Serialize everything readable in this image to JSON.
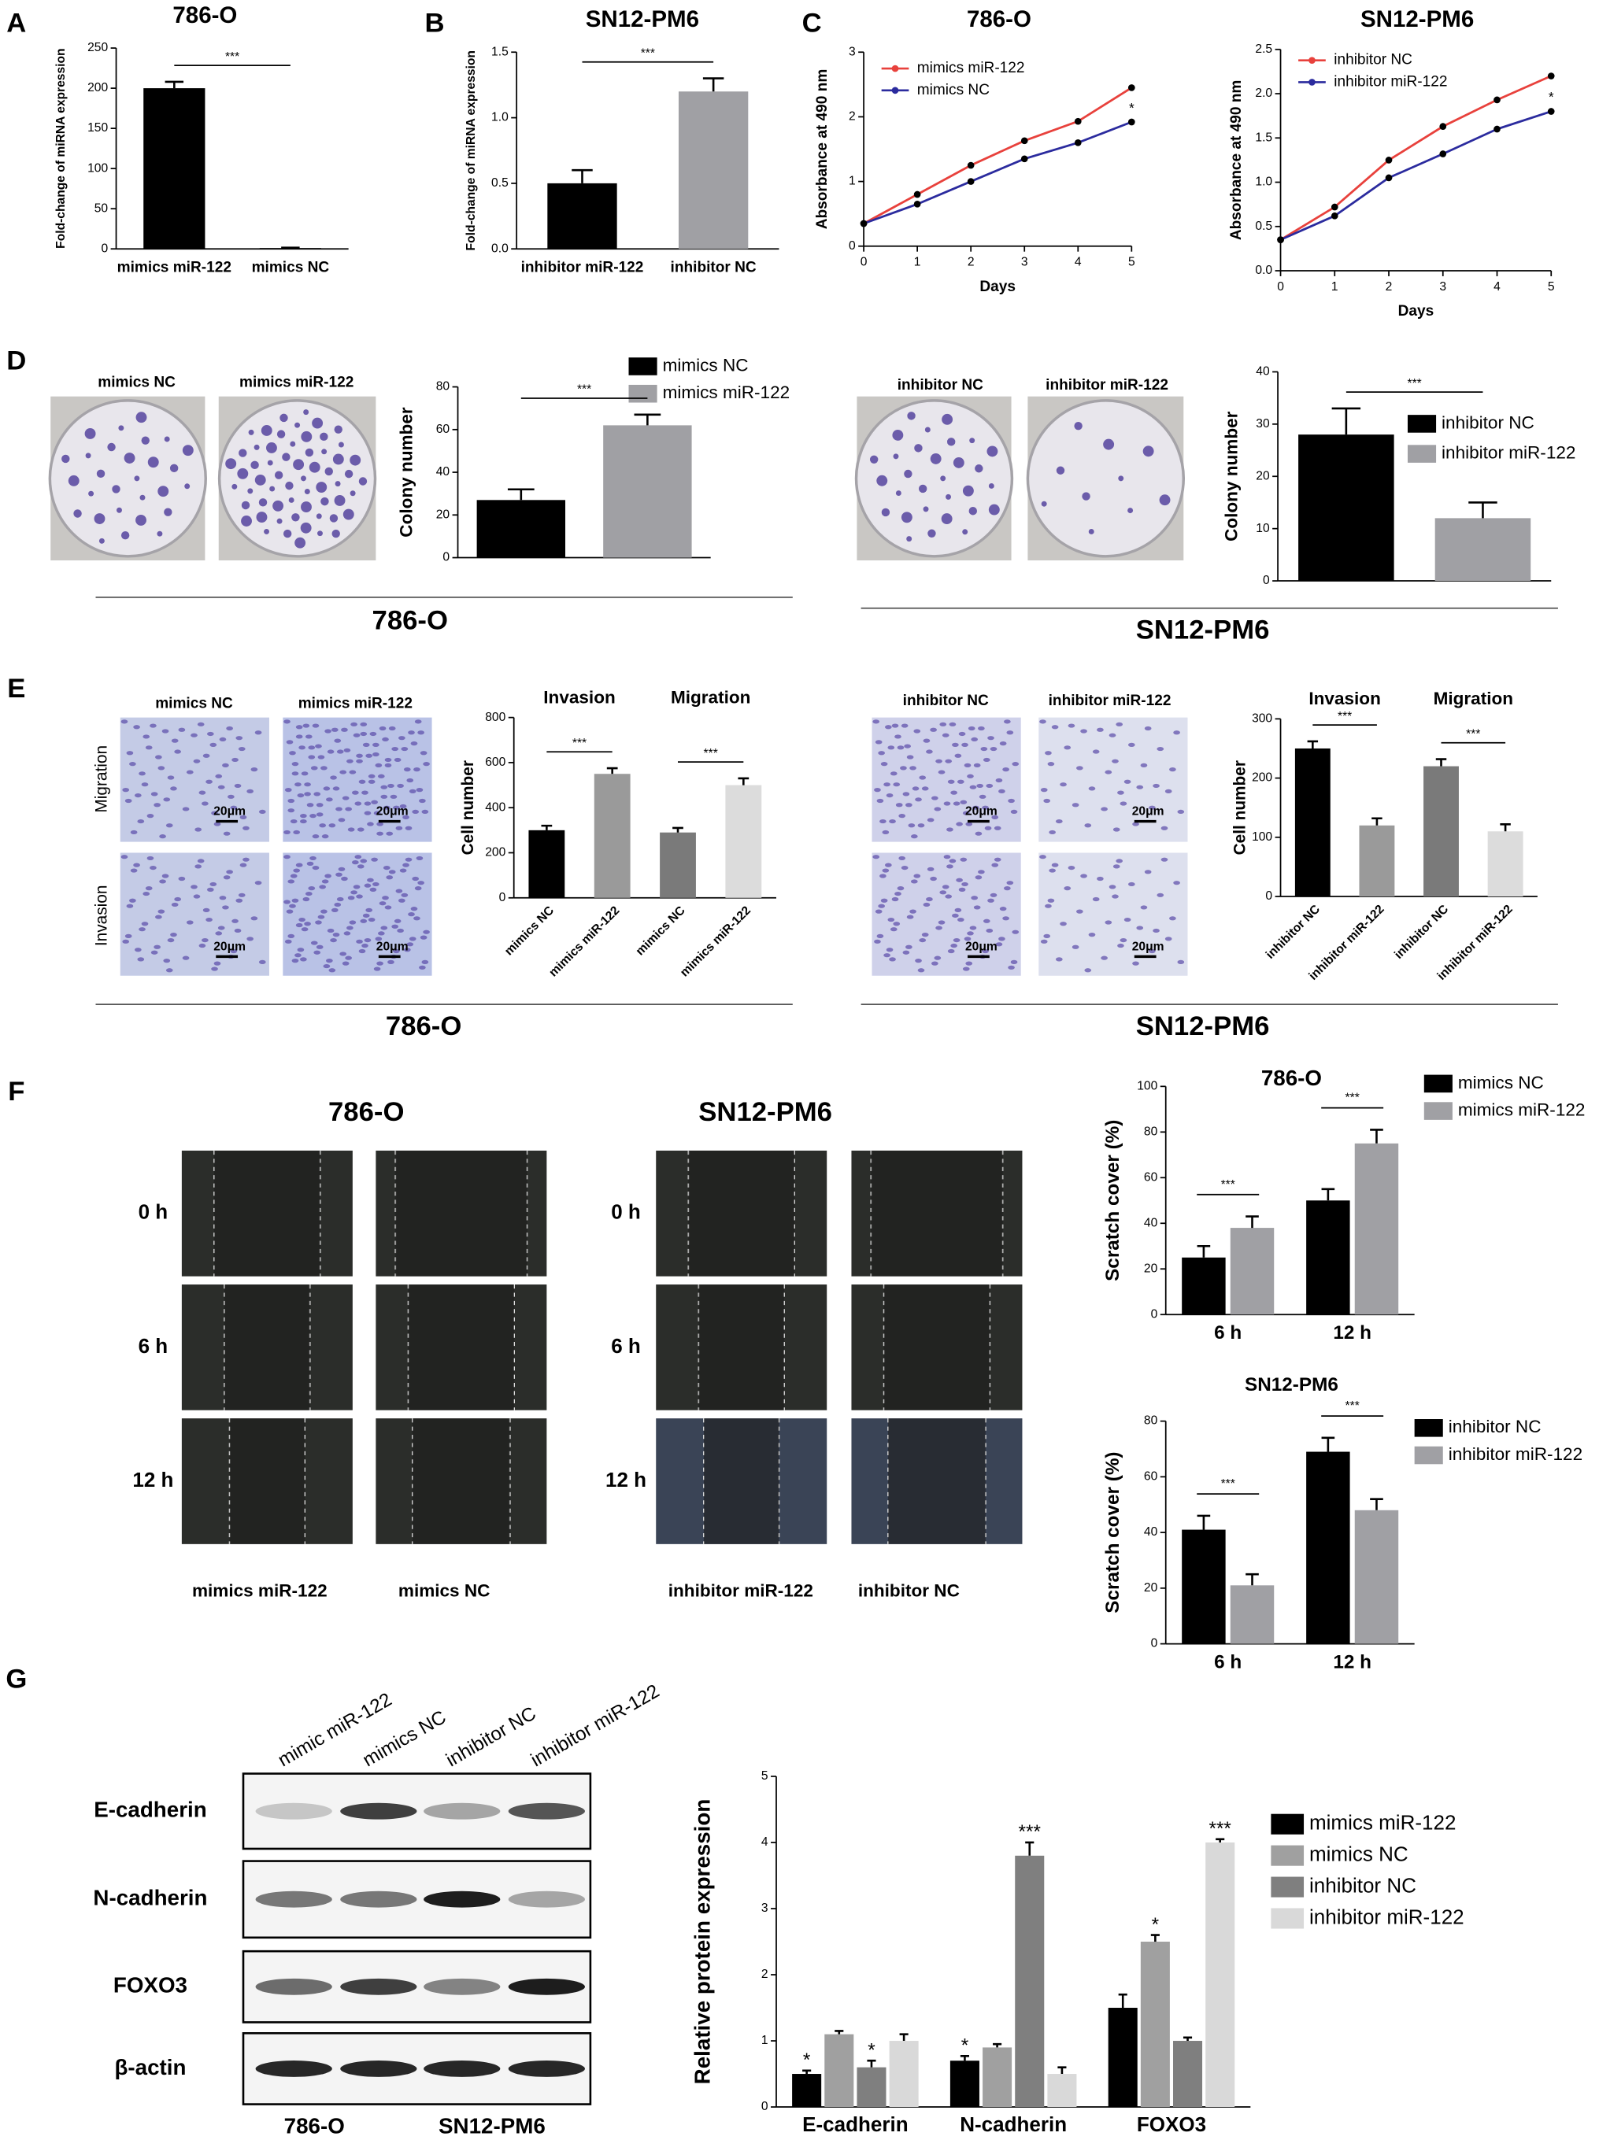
{
  "chart_data": [
    {
      "type": "bar",
      "title": "786-O",
      "y_label": "Fold-change of miRNA expression",
      "categories": [
        "mimics miR-122",
        "mimics NC"
      ],
      "values": [
        200,
        1
      ],
      "errors": [
        8,
        0.5
      ],
      "colors": [
        "#000000",
        "#000000"
      ],
      "ylim": [
        0,
        250
      ],
      "yticks": [
        0,
        50,
        100,
        150,
        200,
        250
      ],
      "annotations": [
        {
          "text": "***",
          "from": 0,
          "to": 1
        }
      ]
    },
    {
      "type": "bar",
      "title": "SN12-PM6",
      "y_label": "Fold-change of miRNA expression",
      "categories": [
        "inhibitor  miR-122",
        "inhibitor  NC"
      ],
      "values": [
        0.5,
        1.2
      ],
      "errors": [
        0.1,
        0.1
      ],
      "colors": [
        "#000000",
        "#a0a0a4"
      ],
      "ylim": [
        0,
        1.5
      ],
      "yticks": [
        {
          "value": 0,
          "label": "0.0"
        },
        0.5,
        {
          "value": 1,
          "label": "1.0"
        },
        1.5
      ],
      "annotations": [
        {
          "text": "***",
          "from": 0,
          "to": 1
        }
      ]
    },
    {
      "type": "line",
      "title": "786-O",
      "x_label": "Days",
      "y_label": "Absorbance at 490 nm",
      "x": [
        0,
        1,
        2,
        3,
        4,
        5
      ],
      "xlim": [
        0,
        5
      ],
      "xticks": [
        0,
        1,
        2,
        3,
        4,
        5
      ],
      "ylim": [
        0,
        3
      ],
      "yticks": [
        0,
        1,
        2,
        3
      ],
      "series": [
        {
          "name": "mimics miR-122",
          "color": "#e8413c",
          "values": [
            0.35,
            0.8,
            1.25,
            1.63,
            1.93,
            2.45
          ]
        },
        {
          "name": "mimics NC",
          "color": "#2b2b9e",
          "values": [
            0.35,
            0.65,
            1.0,
            1.35,
            1.6,
            1.92
          ]
        }
      ],
      "annotations": [
        {
          "text": "*",
          "x": 5
        }
      ]
    },
    {
      "type": "line",
      "title": "SN12-PM6",
      "x_label": "Days",
      "y_label": "Absorbance at 490 nm",
      "x": [
        0,
        1,
        2,
        3,
        4,
        5
      ],
      "xlim": [
        0,
        5
      ],
      "xticks": [
        0,
        1,
        2,
        3,
        4,
        5
      ],
      "ylim": [
        0,
        2.5
      ],
      "yticks": [
        {
          "value": 0,
          "label": "0.0"
        },
        0.5,
        {
          "value": 1,
          "label": "1.0"
        },
        1.5,
        {
          "value": 2,
          "label": "2.0"
        },
        2.5
      ],
      "series": [
        {
          "name": "inhibitor NC",
          "color": "#e8413c",
          "values": [
            0.35,
            0.72,
            1.25,
            1.63,
            1.93,
            2.2
          ]
        },
        {
          "name": "inhibitor miR-122",
          "color": "#2b2b9e",
          "values": [
            0.35,
            0.62,
            1.05,
            1.32,
            1.6,
            1.8
          ]
        }
      ],
      "annotations": [
        {
          "text": "*",
          "x": 5
        }
      ]
    },
    {
      "type": "bar",
      "y_label": "Colony number",
      "ylim": [
        0,
        80
      ],
      "yticks": [
        0,
        20,
        40,
        60,
        80
      ],
      "series": [
        {
          "name": "mimics NC",
          "color": "#000000",
          "values": [
            27
          ],
          "errors": [
            5
          ]
        },
        {
          "name": "mimics  miR-122",
          "color": "#a0a0a4",
          "values": [
            62
          ],
          "errors": [
            5
          ]
        }
      ],
      "annotations": [
        {
          "text": "***",
          "from": 0,
          "to": 1
        }
      ]
    },
    {
      "type": "bar",
      "y_label": "Colony number",
      "ylim": [
        0,
        40
      ],
      "yticks": [
        0,
        10,
        20,
        30,
        40
      ],
      "series": [
        {
          "name": "inhibitor NC",
          "color": "#000000",
          "values": [
            28
          ],
          "errors": [
            5
          ]
        },
        {
          "name": "inhibitor miR-122",
          "color": "#a0a0a4",
          "values": [
            12
          ],
          "errors": [
            3
          ]
        }
      ],
      "annotations": [
        {
          "text": "***",
          "from": 0,
          "to": 1
        }
      ]
    },
    {
      "type": "bar",
      "y_label": "Cell number",
      "categories": [
        "mimics  NC",
        "mimics  miR-122",
        "mimics  NC",
        "mimics  miR-122"
      ],
      "values": [
        300,
        550,
        290,
        500
      ],
      "errors": [
        20,
        25,
        20,
        30
      ],
      "colors": [
        "#000000",
        "#9a9a9a",
        "#7a7a7a",
        "#dcdcdc"
      ],
      "ylim": [
        0,
        800
      ],
      "yticks": [
        0,
        200,
        400,
        600,
        800
      ],
      "annotations": [
        {
          "text": "***",
          "from": 0,
          "to": 1,
          "group": "Invasion"
        },
        {
          "text": "***",
          "from": 2,
          "to": 3,
          "group": "Migration"
        }
      ]
    },
    {
      "type": "bar",
      "y_label": "Cell number",
      "categories": [
        "inhibitor  NC",
        "inhibitor  miR-122",
        "inhibitor  NC",
        "inhibitor  miR-122"
      ],
      "values": [
        250,
        120,
        220,
        110
      ],
      "errors": [
        12,
        12,
        12,
        12
      ],
      "colors": [
        "#000000",
        "#9a9a9a",
        "#7a7a7a",
        "#dcdcdc"
      ],
      "ylim": [
        0,
        300
      ],
      "yticks": [
        0,
        100,
        200,
        300
      ],
      "annotations": [
        {
          "text": "***",
          "from": 0,
          "to": 1,
          "group": "Invasion"
        },
        {
          "text": "***",
          "from": 2,
          "to": 3,
          "group": "Migration"
        }
      ]
    },
    {
      "type": "bar",
      "title": "786-O",
      "y_label": "Scratch cover (%)",
      "categories": [
        "6 h",
        "12 h"
      ],
      "series": [
        {
          "name": "mimics NC",
          "color": "#000000",
          "values": [
            25,
            50
          ],
          "errors": [
            5,
            5
          ]
        },
        {
          "name": "mimics  miR-122",
          "color": "#a0a0a4",
          "values": [
            38,
            75
          ],
          "errors": [
            5,
            6
          ]
        }
      ],
      "ylim": [
        0,
        100
      ],
      "yticks": [
        0,
        20,
        40,
        60,
        80,
        100
      ],
      "annotations": [
        {
          "text": "***",
          "category": 0
        },
        {
          "text": "***",
          "category": 1
        }
      ]
    },
    {
      "type": "bar",
      "title": "SN12-PM6",
      "y_label": "Scratch cover (%)",
      "categories": [
        "6 h",
        "12 h"
      ],
      "series": [
        {
          "name": "inhibitor NC",
          "color": "#000000",
          "values": [
            41,
            69
          ],
          "errors": [
            5,
            5
          ]
        },
        {
          "name": "inhibitor miR-122",
          "color": "#a0a0a4",
          "values": [
            21,
            48
          ],
          "errors": [
            4,
            4
          ]
        }
      ],
      "ylim": [
        0,
        80
      ],
      "yticks": [
        0,
        20,
        40,
        60,
        80
      ],
      "annotations": [
        {
          "text": "***",
          "category": 0
        },
        {
          "text": "***",
          "category": 1
        }
      ]
    },
    {
      "type": "bar",
      "y_label": "Relative protein expression",
      "categories": [
        "E-cadherin",
        "N-cadherin",
        "FOXO3"
      ],
      "series": [
        {
          "name": "mimics  miR-122",
          "color": "#000000",
          "values": [
            0.5,
            0.7,
            1.5
          ],
          "errors": [
            0.05,
            0.07,
            0.2
          ]
        },
        {
          "name": "mimics NC",
          "color": "#a0a0a0",
          "values": [
            1.1,
            0.9,
            2.5
          ],
          "errors": [
            0.05,
            0.05,
            0.1
          ]
        },
        {
          "name": "inhibitor NC",
          "color": "#7f7f7f",
          "values": [
            0.6,
            3.8,
            1.0
          ],
          "errors": [
            0.1,
            0.2,
            0.05
          ]
        },
        {
          "name": "inhibitor miR-122",
          "color": "#d9d9d9",
          "values": [
            1.0,
            0.5,
            4.0
          ],
          "errors": [
            0.1,
            0.1,
            0.05
          ]
        }
      ],
      "ylim": [
        0,
        5
      ],
      "yticks": [
        0,
        1,
        2,
        3,
        4,
        5
      ],
      "annotations": [
        {
          "text": "*",
          "series": 0,
          "category": 0
        },
        {
          "text": "*",
          "series": 2,
          "category": 0
        },
        {
          "text": "*",
          "series": 0,
          "category": 1
        },
        {
          "text": "***",
          "series": 2,
          "category": 1
        },
        {
          "text": "*",
          "series": 1,
          "category": 2
        },
        {
          "text": "***",
          "series": 3,
          "category": 2
        }
      ]
    }
  ],
  "figure": {
    "panels": [
      "A",
      "B",
      "C",
      "D",
      "E",
      "F",
      "G"
    ],
    "d": {
      "photos_left": [
        "mimics NC",
        "mimics miR-122"
      ],
      "cell_left": "786-O",
      "photos_right": [
        "inhibitor  NC",
        "inhibitor  miR-122"
      ],
      "cell_right": "SN12-PM6"
    },
    "e": {
      "photos_left": [
        "mimics NC",
        "mimics miR-122"
      ],
      "photos_right": [
        "inhibitor  NC",
        "inhibitor  miR-122"
      ],
      "rows": [
        "Migration",
        "Invasion"
      ],
      "scale": "20μm",
      "cell_left": "786-O",
      "cell_right": "SN12-PM6"
    },
    "f": {
      "cells": [
        "786-O",
        "SN12-PM6"
      ],
      "times": [
        "0 h",
        "6 h",
        "12 h"
      ],
      "left_cols": [
        "mimics miR-122",
        "mimics NC"
      ],
      "right_cols": [
        "inhibitor miR-122",
        "inhibitor NC"
      ]
    },
    "g": {
      "lanes": [
        "mimic miR-122",
        "mimics NC",
        "inhibitor NC",
        "inhibitor miR-122"
      ],
      "proteins": [
        "E-cadherin",
        "N-cadherin",
        "FOXO3",
        "β-actin"
      ],
      "cells": [
        "786-O",
        "SN12-PM6"
      ]
    }
  }
}
